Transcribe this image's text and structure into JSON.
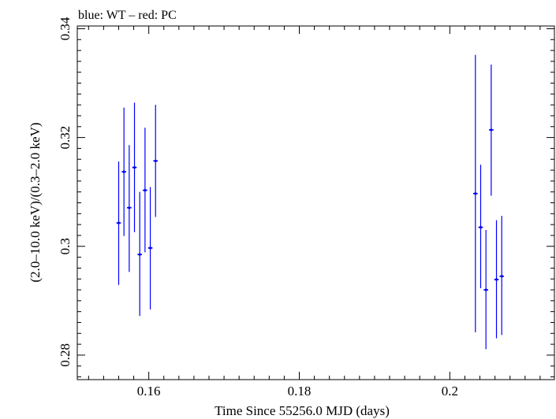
{
  "chart_data": {
    "type": "scatter",
    "title": "blue: WT – red: PC",
    "xlabel": "Time Since 55256.0 MJD (days)",
    "ylabel": "(2.0–10.0 keV)/(0.3–2.0 keV)",
    "xlim": [
      0.1505,
      0.2139
    ],
    "ylim": [
      0.2755,
      0.3405
    ],
    "x_ticks": [
      {
        "value": 0.16,
        "label": "0.16"
      },
      {
        "value": 0.18,
        "label": "0.18"
      },
      {
        "value": 0.2,
        "label": "0.2"
      }
    ],
    "y_ticks": [
      {
        "value": 0.28,
        "label": "0.28"
      },
      {
        "value": 0.3,
        "label": "0.3"
      },
      {
        "value": 0.32,
        "label": "0.32"
      },
      {
        "value": 0.34,
        "label": "0.34"
      }
    ],
    "grid": false,
    "series": [
      {
        "color": "#0000ff",
        "points": [
          {
            "x": 0.156,
            "y": 0.3043,
            "ylo": 0.2929,
            "yhi": 0.3156,
            "xerr": 0.0003
          },
          {
            "x": 0.1567,
            "y": 0.3137,
            "ylo": 0.3019,
            "yhi": 0.3255,
            "xerr": 0.0003
          },
          {
            "x": 0.1574,
            "y": 0.3071,
            "ylo": 0.2953,
            "yhi": 0.3186,
            "xerr": 0.0003
          },
          {
            "x": 0.1581,
            "y": 0.3145,
            "ylo": 0.3026,
            "yhi": 0.3264,
            "xerr": 0.0003
          },
          {
            "x": 0.1588,
            "y": 0.2985,
            "ylo": 0.2872,
            "yhi": 0.31,
            "xerr": 0.0003
          },
          {
            "x": 0.1595,
            "y": 0.3103,
            "ylo": 0.2989,
            "yhi": 0.3218,
            "xerr": 0.0003
          },
          {
            "x": 0.1602,
            "y": 0.2997,
            "ylo": 0.2884,
            "yhi": 0.3109,
            "xerr": 0.0003
          },
          {
            "x": 0.1609,
            "y": 0.3157,
            "ylo": 0.3054,
            "yhi": 0.326,
            "xerr": 0.0003
          },
          {
            "x": 0.2034,
            "y": 0.3097,
            "ylo": 0.2842,
            "yhi": 0.3352,
            "xerr": 0.0003
          },
          {
            "x": 0.2041,
            "y": 0.3035,
            "ylo": 0.2923,
            "yhi": 0.315,
            "xerr": 0.0003
          },
          {
            "x": 0.2048,
            "y": 0.292,
            "ylo": 0.2811,
            "yhi": 0.303,
            "xerr": 0.0003
          },
          {
            "x": 0.2055,
            "y": 0.3214,
            "ylo": 0.3093,
            "yhi": 0.3334,
            "xerr": 0.0003
          },
          {
            "x": 0.2062,
            "y": 0.2939,
            "ylo": 0.2831,
            "yhi": 0.3048,
            "xerr": 0.0003
          },
          {
            "x": 0.2069,
            "y": 0.2945,
            "ylo": 0.2837,
            "yhi": 0.3056,
            "xerr": 0.0003
          }
        ]
      }
    ]
  }
}
